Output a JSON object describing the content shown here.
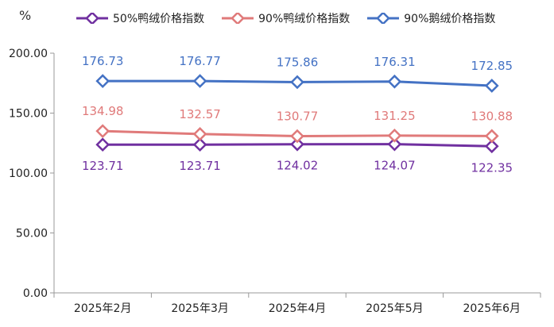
{
  "chart_data": {
    "type": "line",
    "unit_label": "%",
    "categories": [
      "2025年2月",
      "2025年3月",
      "2025年4月",
      "2025年5月",
      "2025年6月"
    ],
    "ylim": [
      0,
      200
    ],
    "yticks": [
      "0.00",
      "50.00",
      "100.00",
      "150.00",
      "200.00"
    ],
    "grid": false,
    "legend_position": "top",
    "series": [
      {
        "name": "50%鸭绒价格指数",
        "color": "#7030A0",
        "values": [
          123.71,
          123.71,
          124.02,
          124.07,
          122.35
        ],
        "labels": [
          "123.71",
          "123.71",
          "124.02",
          "124.07",
          "122.35"
        ],
        "label_pos": "below"
      },
      {
        "name": "90%鸭绒价格指数",
        "color": "#E07A7A",
        "values": [
          134.98,
          132.57,
          130.77,
          131.25,
          130.88
        ],
        "labels": [
          "134.98",
          "132.57",
          "130.77",
          "131.25",
          "130.88"
        ],
        "label_pos": "above"
      },
      {
        "name": "90%鹅绒价格指数",
        "color": "#4472C4",
        "values": [
          176.73,
          176.77,
          175.86,
          176.31,
          172.85
        ],
        "labels": [
          "176.73",
          "176.77",
          "175.86",
          "176.31",
          "172.85"
        ],
        "label_pos": "above"
      }
    ]
  }
}
